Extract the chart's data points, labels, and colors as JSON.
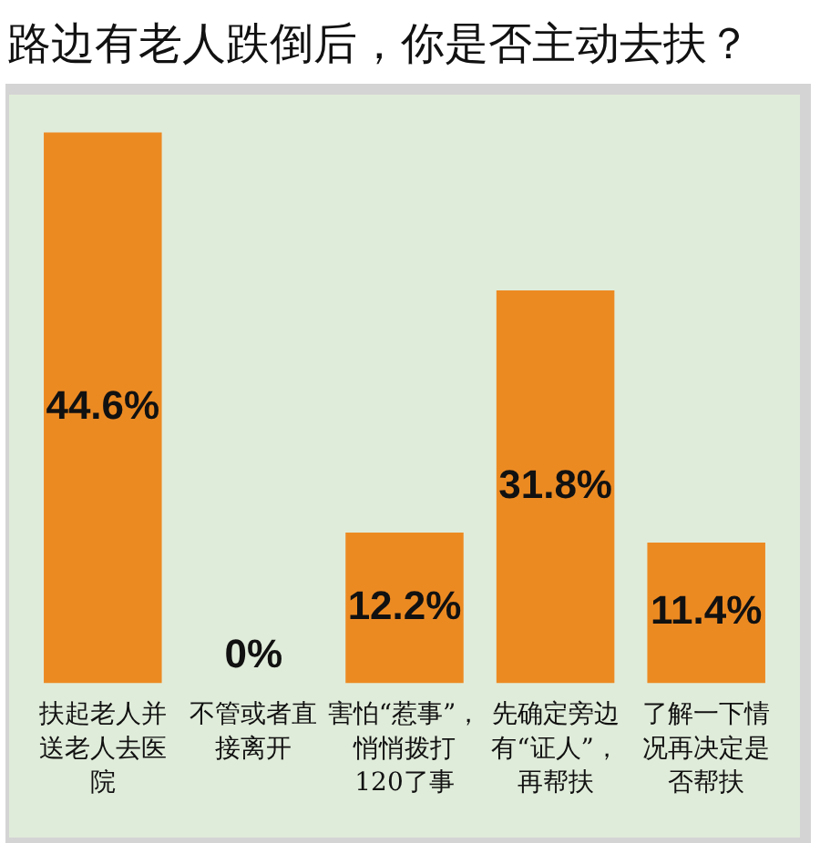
{
  "chart_data": {
    "type": "bar",
    "title": "路边有老人跌倒后，你是否主动去扶？",
    "categories": [
      "扶起老人并送老人去医院",
      "不管或者直接离开",
      "害怕“惹事”，悄悄拨打120了事",
      "先确定旁边有“证人”，再帮扶",
      "了解一下情况再决定是否帮扶"
    ],
    "values": [
      44.6,
      0,
      12.2,
      31.8,
      11.4
    ],
    "value_labels": [
      "44.6%",
      "0%",
      "12.2%",
      "31.8%",
      "11.4%"
    ],
    "color": "#ec8a22",
    "tick_labels": "x"
  }
}
